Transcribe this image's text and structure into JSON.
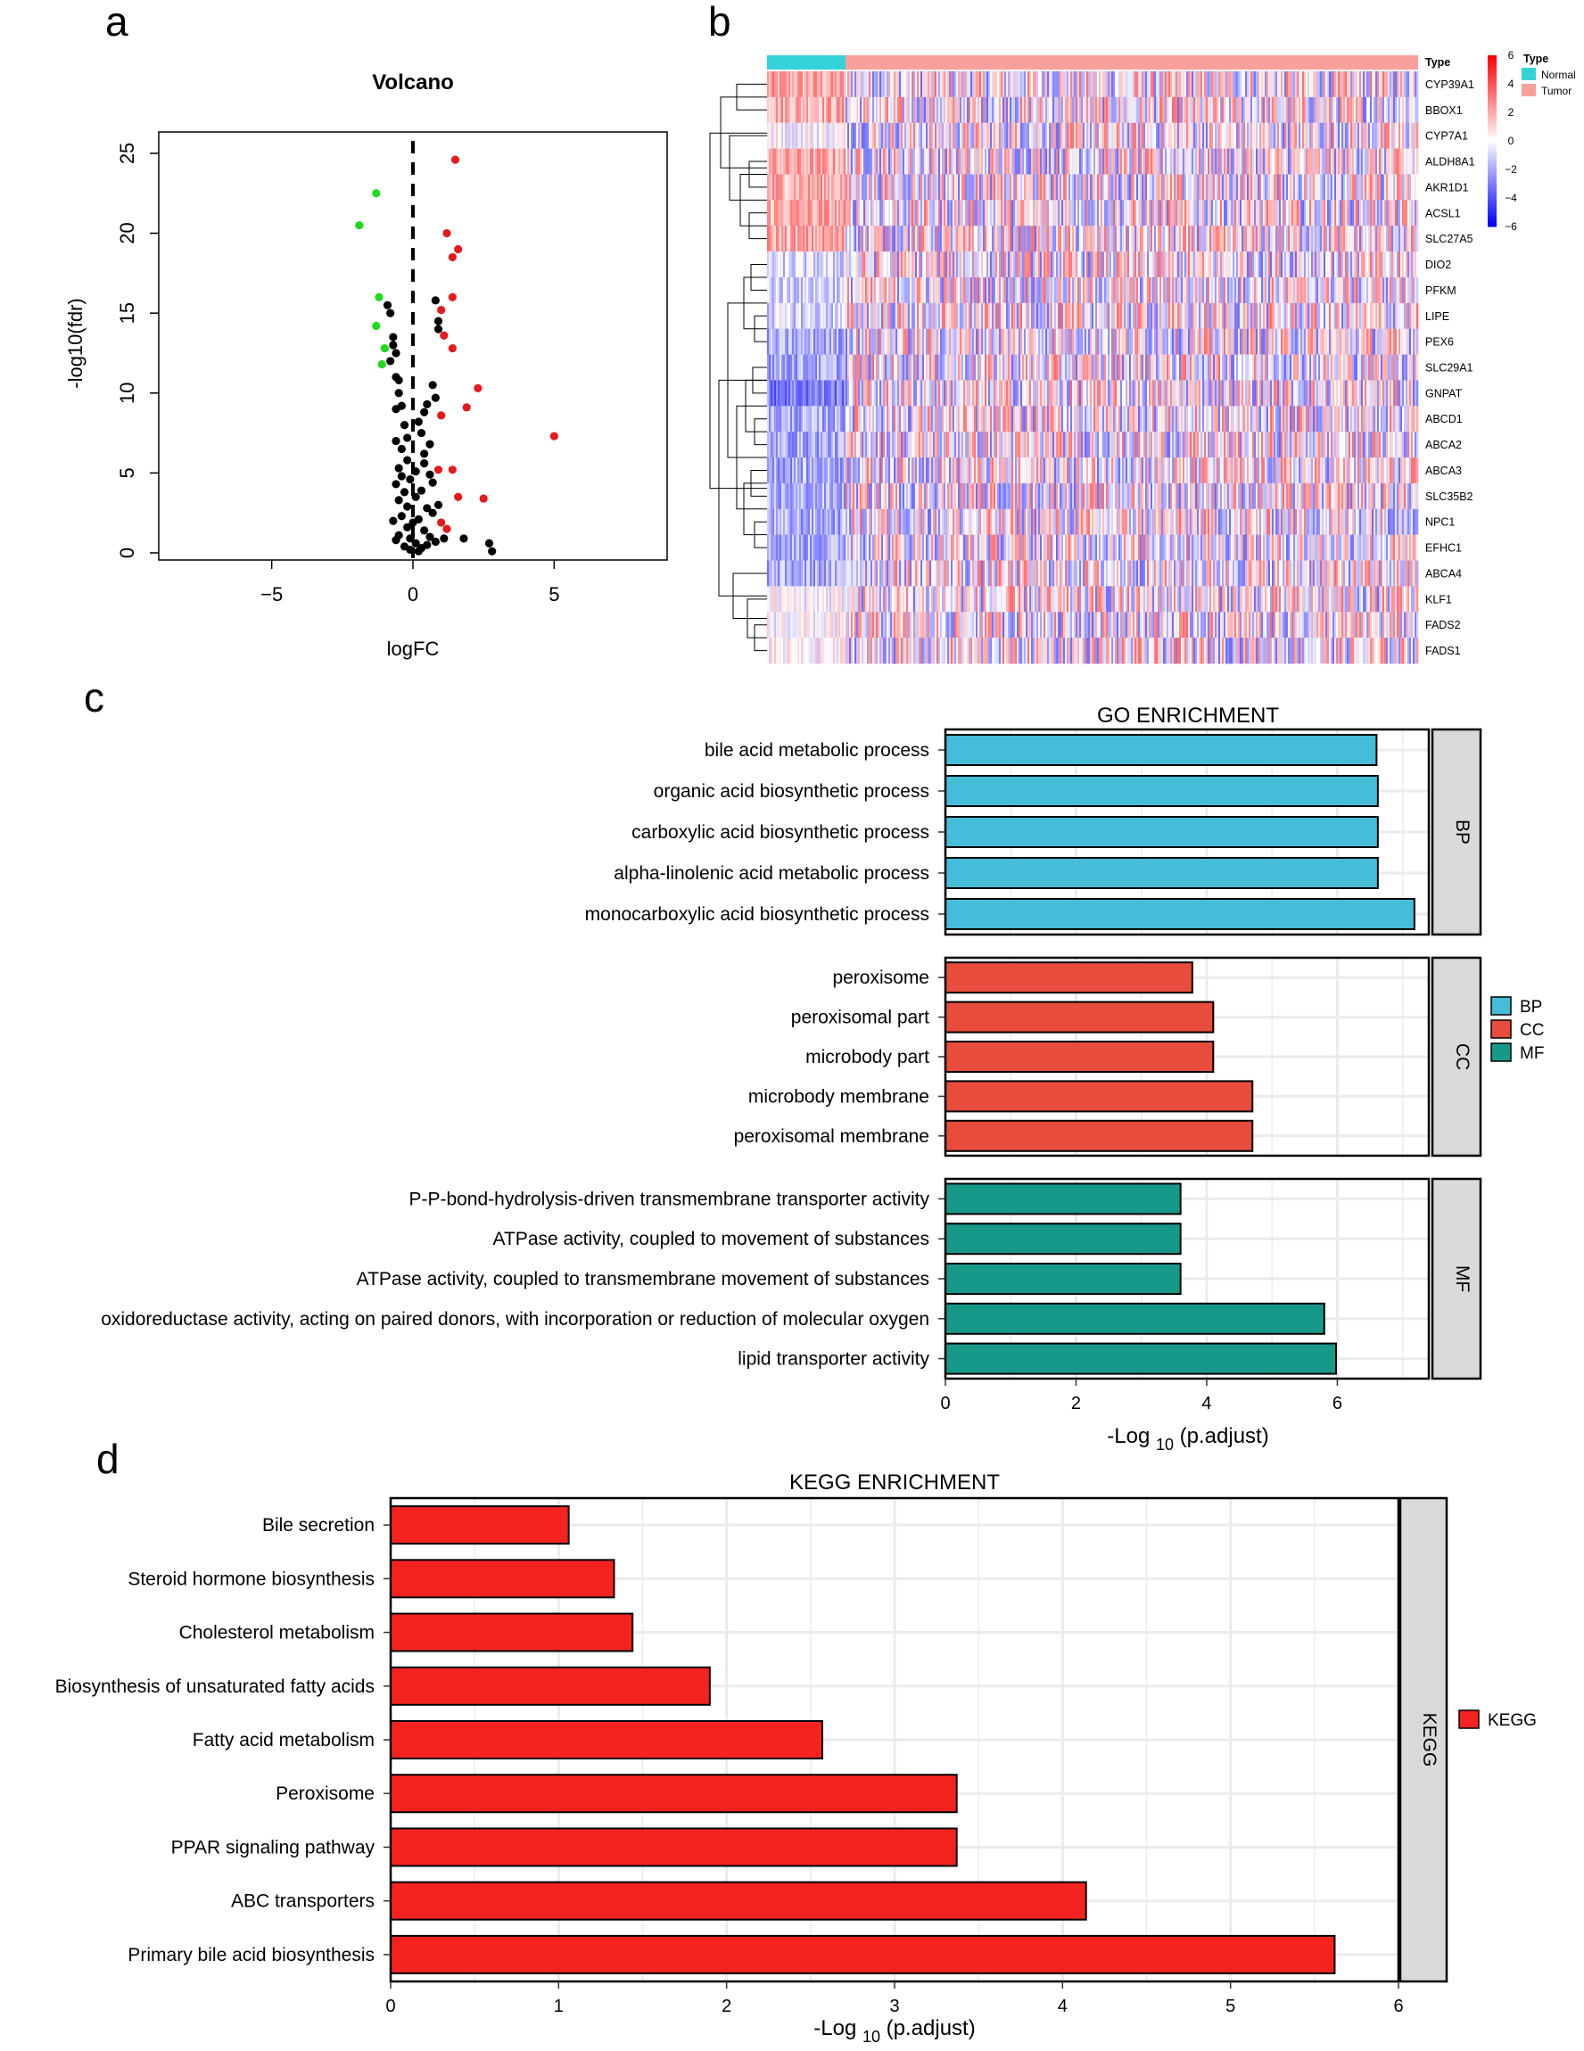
{
  "panel_letters": {
    "a": "a",
    "b": "b",
    "c": "c",
    "d": "d"
  },
  "colors": {
    "up": "#e41a1c",
    "down": "#1fd81f",
    "ns": "#000000",
    "bp": "#45bcd8",
    "cc": "#e84c3c",
    "mf": "#17998a",
    "kegg": "#f5231f",
    "normal": "#34d3d8",
    "tumor": "#f8a09b",
    "heat_low": "#1a1af5",
    "heat_high": "#f51a1a",
    "strip": "#d9d9d9",
    "grid": "#ebebeb"
  },
  "chart_data": [
    {
      "id": "volcano",
      "type": "scatter",
      "title": "Volcano",
      "xlabel": "logFC",
      "ylabel": "-log10(fdr)",
      "xlim": [
        -9,
        9
      ],
      "ylim": [
        0,
        26
      ],
      "xticks": [
        -5,
        0,
        5
      ],
      "yticks": [
        0,
        5,
        10,
        15,
        20,
        25
      ],
      "threshold_x": 0,
      "series": [
        {
          "name": "up",
          "points": [
            [
              1.5,
              24.6
            ],
            [
              1.2,
              20
            ],
            [
              1.6,
              19
            ],
            [
              1.4,
              18.5
            ],
            [
              1.4,
              16
            ],
            [
              1.0,
              15.2
            ],
            [
              1.1,
              13.6
            ],
            [
              1.4,
              12.8
            ],
            [
              2.3,
              10.3
            ],
            [
              1.9,
              9.1
            ],
            [
              1.0,
              8.6
            ],
            [
              5.0,
              7.3
            ],
            [
              1.4,
              5.2
            ],
            [
              0.9,
              5.2
            ],
            [
              1.6,
              3.5
            ],
            [
              2.5,
              3.4
            ],
            [
              1.0,
              1.9
            ],
            [
              1.2,
              1.5
            ]
          ]
        },
        {
          "name": "down",
          "points": [
            [
              -1.3,
              22.5
            ],
            [
              -1.9,
              20.5
            ],
            [
              -1.2,
              16
            ],
            [
              -1.3,
              14.2
            ],
            [
              -1.0,
              12.8
            ],
            [
              -1.1,
              11.8
            ]
          ]
        },
        {
          "name": "ns",
          "points": [
            [
              -0.9,
              15.5
            ],
            [
              -0.8,
              15
            ],
            [
              0.9,
              14.5
            ],
            [
              0.9,
              14
            ],
            [
              0.8,
              15.8
            ],
            [
              -0.7,
              13.5
            ],
            [
              -0.6,
              12.5
            ],
            [
              -0.6,
              11
            ],
            [
              -0.8,
              12
            ],
            [
              -0.7,
              13
            ],
            [
              -0.5,
              10.8
            ],
            [
              -0.5,
              10
            ],
            [
              -0.4,
              9.2
            ],
            [
              -0.6,
              9
            ],
            [
              -0.3,
              8
            ],
            [
              -0.6,
              7
            ],
            [
              0.7,
              10.5
            ],
            [
              0.5,
              9.3
            ],
            [
              0.4,
              8.8
            ],
            [
              0.2,
              8.2
            ],
            [
              0.8,
              9.7
            ],
            [
              -0.4,
              6.5
            ],
            [
              -0.5,
              5.3
            ],
            [
              -0.2,
              5.8
            ],
            [
              -0.4,
              4.8
            ],
            [
              -0.6,
              4.3
            ],
            [
              -0.1,
              4.6
            ],
            [
              0.1,
              5.1
            ],
            [
              0.4,
              5.6
            ],
            [
              0.6,
              4.9
            ],
            [
              0.7,
              4.4
            ],
            [
              -0.3,
              3.8
            ],
            [
              -0.5,
              3.3
            ],
            [
              -0.2,
              2.9
            ],
            [
              0.1,
              3.5
            ],
            [
              0.3,
              3.9
            ],
            [
              0.5,
              2.8
            ],
            [
              0.7,
              2.5
            ],
            [
              0.9,
              3.0
            ],
            [
              -0.4,
              2.3
            ],
            [
              -0.7,
              2.0
            ],
            [
              -0.2,
              1.6
            ],
            [
              0.0,
              1.9
            ],
            [
              0.2,
              2.1
            ],
            [
              0.4,
              1.4
            ],
            [
              0.6,
              1.0
            ],
            [
              -0.5,
              1.1
            ],
            [
              -0.1,
              0.9
            ],
            [
              0.1,
              0.6
            ],
            [
              0.3,
              0.3
            ],
            [
              0.5,
              0.5
            ],
            [
              -0.3,
              0.4
            ],
            [
              -0.1,
              0.2
            ],
            [
              0.2,
              0.1
            ],
            [
              0.8,
              0.7
            ],
            [
              1.1,
              0.9
            ],
            [
              1.8,
              0.9
            ],
            [
              2.7,
              0.6
            ],
            [
              2.8,
              0.1
            ],
            [
              -0.6,
              0.8
            ],
            [
              0.4,
              6.2
            ],
            [
              0.6,
              6.8
            ],
            [
              -0.2,
              7.2
            ],
            [
              0.3,
              7.5
            ]
          ]
        }
      ]
    },
    {
      "id": "heatmap",
      "type": "heatmap",
      "rows": [
        "CYP39A1",
        "BBOX1",
        "CYP7A1",
        "ALDH8A1",
        "AKR1D1",
        "ACSL1",
        "SLC27A5",
        "DIO2",
        "PFKM",
        "LIPE",
        "PEX6",
        "SLC29A1",
        "GNPAT",
        "ABCD1",
        "ABCA2",
        "ABCA3",
        "SLC35B2",
        "NPC1",
        "EFHC1",
        "ABCA4",
        "KLF1",
        "FADS2",
        "FADS1"
      ],
      "annotation_label": "Type",
      "groups": [
        {
          "name": "Normal",
          "count": 50
        },
        {
          "name": "Tumor",
          "count": 374
        }
      ],
      "scale_title": "Type",
      "scale_ticks": [
        6,
        4,
        2,
        0,
        -2,
        -4,
        -6
      ],
      "scale_tick_labels": [
        "6",
        "4",
        "2",
        "0",
        "−2",
        "−4",
        "−6"
      ],
      "legend": {
        "title": "Type",
        "entries": [
          "Normal",
          "Tumor"
        ]
      },
      "row_bias_normal": [
        2,
        2,
        0,
        2,
        2,
        2,
        2,
        -1,
        -1,
        -1,
        -2,
        -2,
        -3,
        -2,
        -2,
        -2,
        -2,
        -2,
        -2,
        -2,
        0,
        0,
        0
      ],
      "row_bias_tumor": [
        0,
        0,
        0,
        0,
        0,
        0,
        0,
        0,
        0,
        0,
        0,
        0,
        0,
        0,
        0,
        0,
        0,
        0,
        0,
        0,
        0,
        0,
        0
      ]
    },
    {
      "id": "go",
      "type": "bar",
      "orientation": "horizontal",
      "title": "GO ENRICHMENT",
      "xlabel": "-Log",
      "xlabel_sub": "10",
      "xlabel_tail": " (p.adjust)",
      "xlim": [
        0,
        7.4
      ],
      "xticks": [
        0,
        2,
        4,
        6
      ],
      "facets": [
        {
          "name": "BP",
          "categories": [
            "bile acid metabolic process",
            "organic acid biosynthetic process",
            "carboxylic acid biosynthetic process",
            "alpha-linolenic acid metabolic process",
            "monocarboxylic acid biosynthetic process"
          ],
          "values": [
            6.6,
            6.62,
            6.62,
            6.62,
            7.18
          ]
        },
        {
          "name": "CC",
          "categories": [
            "peroxisome",
            "peroxisomal part",
            "microbody part",
            "microbody membrane",
            "peroxisomal membrane"
          ],
          "values": [
            3.78,
            4.1,
            4.1,
            4.7,
            4.7
          ]
        },
        {
          "name": "MF",
          "categories": [
            "P-P-bond-hydrolysis-driven transmembrane transporter activity",
            "ATPase activity, coupled to movement of substances",
            "ATPase activity, coupled to transmembrane movement of substances",
            "oxidoreductase activity, acting on paired donors, with incorporation or reduction of molecular oxygen",
            "lipid transporter activity"
          ],
          "values": [
            3.6,
            3.6,
            3.6,
            5.8,
            5.98
          ]
        }
      ],
      "legend": [
        "BP",
        "CC",
        "MF"
      ]
    },
    {
      "id": "kegg",
      "type": "bar",
      "orientation": "horizontal",
      "title": "KEGG ENRICHMENT",
      "xlabel": "-Log",
      "xlabel_sub": "10",
      "xlabel_tail": " (p.adjust)",
      "xlim": [
        0,
        6
      ],
      "xticks": [
        0,
        1,
        2,
        3,
        4,
        5,
        6
      ],
      "facet": "KEGG",
      "categories": [
        "Bile secretion",
        "Steroid hormone biosynthesis",
        "Cholesterol metabolism",
        "Biosynthesis of unsaturated fatty acids",
        "Fatty acid metabolism",
        "Peroxisome",
        "PPAR signaling pathway",
        "ABC transporters",
        "Primary bile acid biosynthesis"
      ],
      "values": [
        1.06,
        1.33,
        1.44,
        1.9,
        2.57,
        3.37,
        3.37,
        4.14,
        5.62
      ],
      "legend": [
        "KEGG"
      ]
    }
  ]
}
